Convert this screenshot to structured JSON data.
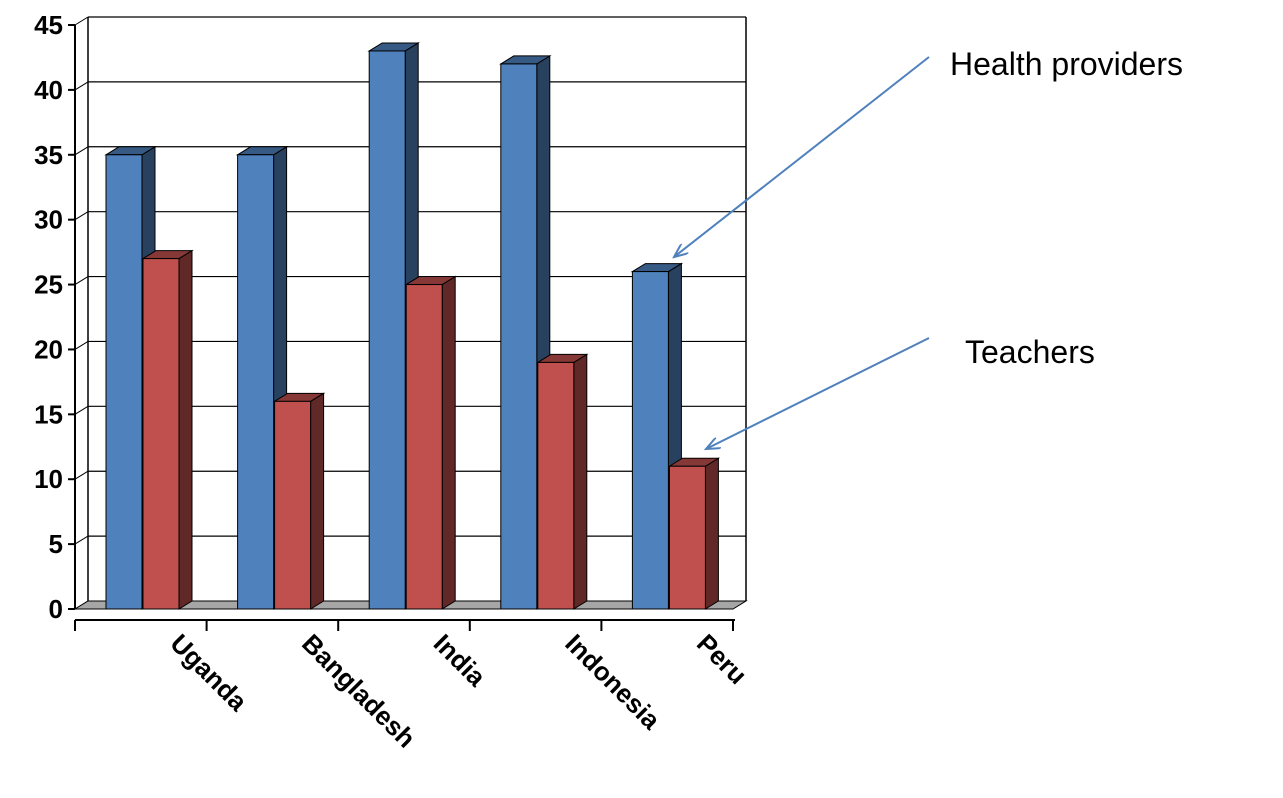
{
  "chart_data": {
    "type": "bar",
    "categories": [
      "Uganda",
      "Bangladesh",
      "India",
      "Indonesia",
      "Peru"
    ],
    "series": [
      {
        "values": [
          35,
          35,
          43,
          42,
          26
        ],
        "color": "#4F81BD"
      },
      {
        "values": [
          27,
          16,
          25,
          19,
          11
        ],
        "color": "#C0504D"
      }
    ],
    "ylim": [
      0,
      45
    ],
    "yticks": [
      0,
      5,
      10,
      15,
      20,
      25,
      30,
      35,
      40,
      45
    ],
    "grid": true,
    "annotations": [
      {
        "text": "Health providers",
        "series": 0,
        "category": "Peru"
      },
      {
        "text": "Teachers",
        "series": 1,
        "category": "Peru"
      }
    ]
  }
}
